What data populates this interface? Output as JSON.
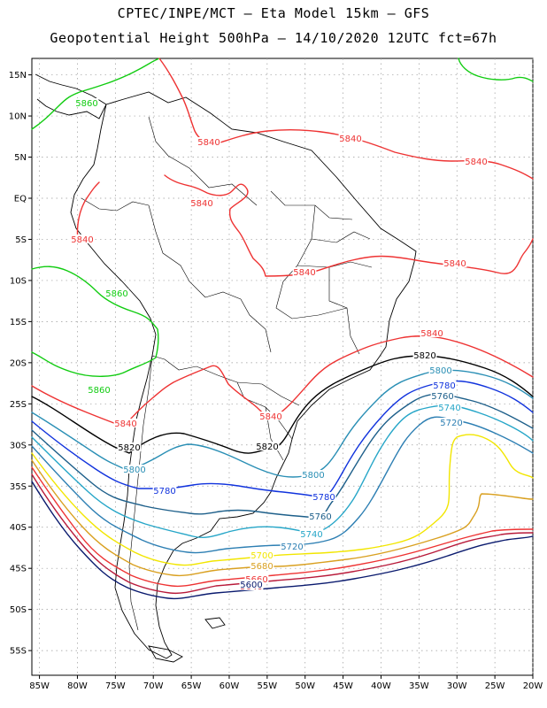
{
  "header": {
    "line1": "CPTEC/INPE/MCT –  Eta Model 15km – GFS",
    "line2": "Geopotential Height 500hPa – 14/10/2020 12UTC fct=67h"
  },
  "map": {
    "lon_range": [
      -86,
      -20
    ],
    "lat_range": [
      -58,
      17
    ],
    "lat_ticks": [
      "15N",
      "10N",
      "5N",
      "EQ",
      "5S",
      "10S",
      "15S",
      "20S",
      "25S",
      "30S",
      "35S",
      "40S",
      "45S",
      "50S",
      "55S"
    ],
    "lon_ticks": [
      "85W",
      "80W",
      "75W",
      "70W",
      "65W",
      "60W",
      "55W",
      "50W",
      "45W",
      "40W",
      "35W",
      "30W",
      "25W",
      "20W"
    ],
    "grid": true
  },
  "contours": [
    {
      "value": 5860,
      "color": "#11cc11",
      "labels": [
        "5860",
        "5860",
        "5860"
      ]
    },
    {
      "value": 5840,
      "color": "#ee3333",
      "labels": [
        "5840",
        "5840",
        "5840",
        "5840",
        "5840",
        "5840",
        "5840",
        "5840",
        "5840",
        "5840"
      ]
    },
    {
      "value": 5820,
      "color": "#000000",
      "labels": [
        "5820",
        "5820",
        "5820"
      ]
    },
    {
      "value": 5800,
      "color": "#2a8fb5",
      "labels": [
        "5800",
        "5800",
        "5800"
      ]
    },
    {
      "value": 5780,
      "color": "#1133dd",
      "labels": [
        "5780",
        "5780",
        "5780"
      ]
    },
    {
      "value": 5760,
      "color": "#1d5f8a",
      "labels": [
        "5760",
        "5760"
      ]
    },
    {
      "value": 5740,
      "color": "#26a6c8",
      "labels": [
        "5740",
        "5740"
      ]
    },
    {
      "value": 5720,
      "color": "#2d7fb3",
      "labels": [
        "5720",
        "5720"
      ]
    },
    {
      "value": 5700,
      "color": "#f2e600",
      "labels": [
        "5700"
      ]
    },
    {
      "value": 5680,
      "color": "#d9a020",
      "labels": [
        "5680"
      ]
    },
    {
      "value": 5660,
      "color": "#ee3333",
      "labels": [
        "5660"
      ]
    },
    {
      "value": 5640,
      "color": "#b81a3a",
      "labels": [
        "5640"
      ]
    },
    {
      "value": 5600,
      "color": "#0a1a6e",
      "labels": [
        "5600"
      ]
    }
  ]
}
